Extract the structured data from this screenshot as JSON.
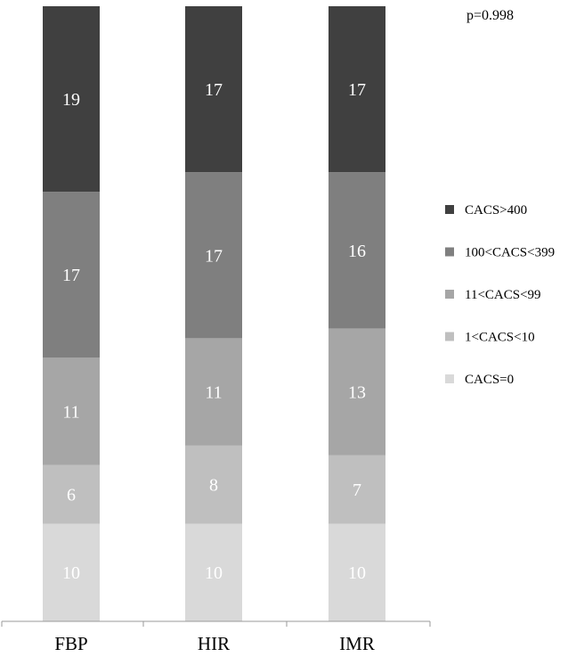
{
  "chart_data": {
    "type": "stacked-bar",
    "categories": [
      "FBP",
      "HIR",
      "IMR"
    ],
    "series": [
      {
        "name": "CACS=0",
        "color": "#d9d9d9",
        "values": [
          10,
          10,
          10
        ]
      },
      {
        "name": "1<CACS<10",
        "color": "#bfbfbf",
        "values": [
          6,
          8,
          7
        ]
      },
      {
        "name": "11<CACS<99",
        "color": "#a6a6a6",
        "values": [
          11,
          11,
          13
        ]
      },
      {
        "name": "100<CACS<399",
        "color": "#7f7f7f",
        "values": [
          17,
          17,
          16
        ]
      },
      {
        "name": "CACS>400",
        "color": "#404040",
        "values": [
          19,
          17,
          17
        ]
      }
    ],
    "annotation": "p=0.998",
    "legend_position": "right",
    "grid": false
  }
}
